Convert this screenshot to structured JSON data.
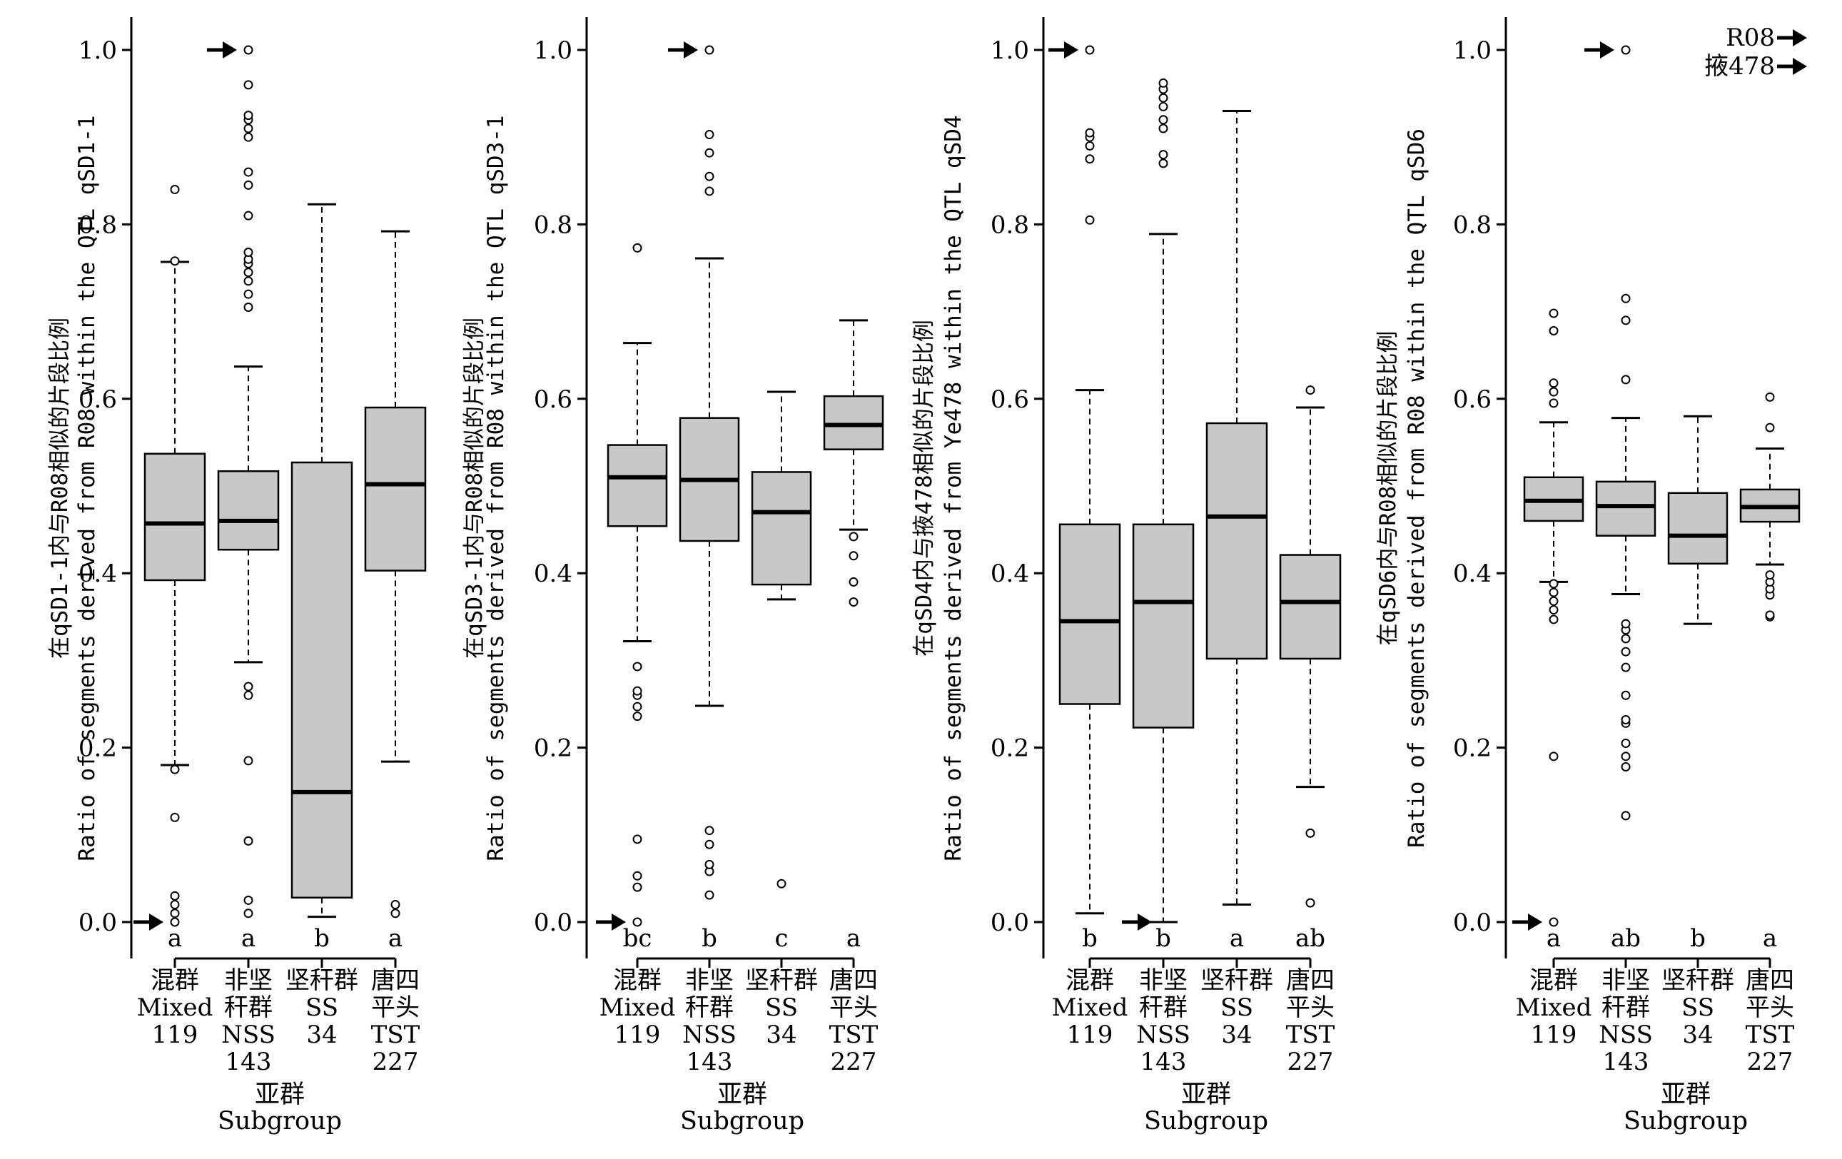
{
  "chart_data": [
    {
      "type": "box",
      "ylabel_cn": "在qSD1-1内与R08相似的片段比例",
      "ylabel_en": "Ratio of segments derived from R08 within the QTL qSD1-1",
      "xlabel_cn": "亚群",
      "xlabel_en": "Subgroup",
      "ylim": [
        0,
        1
      ],
      "yticks": [
        "0.0",
        "0.2",
        "0.4",
        "0.6",
        "0.8",
        "1.0"
      ],
      "groups": [
        {
          "cn": [
            "混群"
          ],
          "en": "Mixed",
          "n": "119",
          "q1": 0.392,
          "median": 0.457,
          "q3": 0.537,
          "whisker_low": 0.18,
          "whisker_high": 0.757,
          "letter": "a",
          "outliers": [
            0.0,
            0.01,
            0.02,
            0.03,
            0.12,
            0.175,
            0.758,
            0.84
          ],
          "arrow_at": 0.0
        },
        {
          "cn": [
            "非坚",
            "秆群"
          ],
          "en": "NSS",
          "n": "143",
          "q1": 0.427,
          "median": 0.46,
          "q3": 0.517,
          "whisker_low": 0.298,
          "whisker_high": 0.637,
          "letter": "a",
          "outliers": [
            0.01,
            0.025,
            0.093,
            0.185,
            0.26,
            0.27,
            0.705,
            0.72,
            0.735,
            0.745,
            0.755,
            0.76,
            0.768,
            0.81,
            0.845,
            0.86,
            0.9,
            0.91,
            0.92,
            0.925,
            0.96,
            1.0
          ],
          "arrow_at": 1.0
        },
        {
          "cn": [
            "坚秆群"
          ],
          "en": "SS",
          "n": "34",
          "q1": 0.028,
          "median": 0.149,
          "q3": 0.527,
          "whisker_low": 0.006,
          "whisker_high": 0.823,
          "letter": "b",
          "outliers": []
        },
        {
          "cn": [
            "唐四",
            "平头"
          ],
          "en": "TST",
          "n": "227",
          "q1": 0.403,
          "median": 0.502,
          "q3": 0.59,
          "whisker_low": 0.184,
          "whisker_high": 0.792,
          "letter": "a",
          "outliers": [
            0.01,
            0.02
          ]
        }
      ]
    },
    {
      "type": "box",
      "ylabel_cn": "在qSD3-1内与R08相似的片段比例",
      "ylabel_en": "Ratio of segments derived from R08 within the QTL qSD3-1",
      "xlabel_cn": "亚群",
      "xlabel_en": "Subgroup",
      "ylim": [
        0,
        1
      ],
      "yticks": [
        "0.0",
        "0.2",
        "0.4",
        "0.6",
        "0.8",
        "1.0"
      ],
      "groups": [
        {
          "cn": [
            "混群"
          ],
          "en": "Mixed",
          "n": "119",
          "q1": 0.454,
          "median": 0.51,
          "q3": 0.547,
          "whisker_low": 0.322,
          "whisker_high": 0.664,
          "letter": "bc",
          "outliers": [
            0.0,
            0.04,
            0.053,
            0.095,
            0.236,
            0.247,
            0.26,
            0.265,
            0.293,
            0.773
          ],
          "arrow_at": 0.0
        },
        {
          "cn": [
            "非坚",
            "秆群"
          ],
          "en": "NSS",
          "n": "143",
          "q1": 0.437,
          "median": 0.507,
          "q3": 0.578,
          "whisker_low": 0.248,
          "whisker_high": 0.761,
          "letter": "b",
          "outliers": [
            0.031,
            0.058,
            0.066,
            0.089,
            0.105,
            0.838,
            0.855,
            0.882,
            0.903,
            1.0
          ],
          "arrow_at": 1.0
        },
        {
          "cn": [
            "坚秆群"
          ],
          "en": "SS",
          "n": "34",
          "q1": 0.387,
          "median": 0.47,
          "q3": 0.516,
          "whisker_low": 0.37,
          "whisker_high": 0.608,
          "letter": "c",
          "outliers": [
            0.044
          ]
        },
        {
          "cn": [
            "唐四",
            "平头"
          ],
          "en": "TST",
          "n": "227",
          "q1": 0.542,
          "median": 0.57,
          "q3": 0.603,
          "whisker_low": 0.45,
          "whisker_high": 0.69,
          "letter": "a",
          "outliers": [
            0.367,
            0.39,
            0.42,
            0.442
          ]
        }
      ]
    },
    {
      "type": "box",
      "ylabel_cn": "在qSD4内与掖478相似的片段比例",
      "ylabel_en": "Ratio of segments derived from Ye478 within the QTL qSD4",
      "xlabel_cn": "亚群",
      "xlabel_en": "Subgroup",
      "ylim": [
        0,
        1
      ],
      "yticks": [
        "0.0",
        "0.2",
        "0.4",
        "0.6",
        "0.8",
        "1.0"
      ],
      "groups": [
        {
          "cn": [
            "混群"
          ],
          "en": "Mixed",
          "n": "119",
          "q1": 0.25,
          "median": 0.345,
          "q3": 0.456,
          "whisker_low": 0.01,
          "whisker_high": 0.61,
          "letter": "b",
          "outliers": [
            0.805,
            0.875,
            0.89,
            0.9,
            0.905,
            1.0
          ],
          "arrow_at": 1.0
        },
        {
          "cn": [
            "非坚",
            "秆群"
          ],
          "en": "NSS",
          "n": "143",
          "q1": 0.223,
          "median": 0.367,
          "q3": 0.456,
          "whisker_low": 0.0,
          "whisker_high": 0.789,
          "letter": "b",
          "outliers": [
            0.87,
            0.88,
            0.91,
            0.92,
            0.935,
            0.945,
            0.955,
            0.962
          ],
          "arrow_at": 0.0
        },
        {
          "cn": [
            "坚秆群"
          ],
          "en": "SS",
          "n": "34",
          "q1": 0.302,
          "median": 0.465,
          "q3": 0.572,
          "whisker_low": 0.02,
          "whisker_high": 0.93,
          "letter": "a",
          "outliers": []
        },
        {
          "cn": [
            "唐四",
            "平头"
          ],
          "en": "TST",
          "n": "227",
          "q1": 0.302,
          "median": 0.367,
          "q3": 0.421,
          "whisker_low": 0.155,
          "whisker_high": 0.59,
          "letter": "ab",
          "outliers": [
            0.022,
            0.102,
            0.61
          ]
        }
      ]
    },
    {
      "type": "box",
      "ylabel_cn": "在qSD6内与R08相似的片段比例",
      "ylabel_en": "Ratio of segments derived from R08 within the QTL qSD6",
      "xlabel_cn": "亚群",
      "xlabel_en": "Subgroup",
      "ylim": [
        0,
        1
      ],
      "yticks": [
        "0.0",
        "0.2",
        "0.4",
        "0.6",
        "0.8",
        "1.0"
      ],
      "legend": [
        {
          "label": "R08"
        },
        {
          "label": "掖478"
        }
      ],
      "groups": [
        {
          "cn": [
            "混群"
          ],
          "en": "Mixed",
          "n": "119",
          "q1": 0.46,
          "median": 0.483,
          "q3": 0.51,
          "whisker_low": 0.39,
          "whisker_high": 0.573,
          "letter": "a",
          "outliers": [
            0.0,
            0.19,
            0.347,
            0.358,
            0.368,
            0.378,
            0.388,
            0.595,
            0.608,
            0.618,
            0.678,
            0.698
          ],
          "arrow_at": 0.0
        },
        {
          "cn": [
            "非坚",
            "秆群"
          ],
          "en": "NSS",
          "n": "143",
          "q1": 0.443,
          "median": 0.477,
          "q3": 0.505,
          "whisker_low": 0.376,
          "whisker_high": 0.578,
          "letter": "ab",
          "outliers": [
            0.122,
            0.178,
            0.19,
            0.205,
            0.228,
            0.232,
            0.26,
            0.292,
            0.31,
            0.325,
            0.335,
            0.342,
            0.622,
            0.69,
            0.715,
            1.0
          ],
          "arrow_at": 1.0
        },
        {
          "cn": [
            "坚秆群"
          ],
          "en": "SS",
          "n": "34",
          "q1": 0.411,
          "median": 0.443,
          "q3": 0.492,
          "whisker_low": 0.342,
          "whisker_high": 0.58,
          "letter": "b",
          "outliers": []
        },
        {
          "cn": [
            "唐四",
            "平头"
          ],
          "en": "TST",
          "n": "227",
          "q1": 0.459,
          "median": 0.476,
          "q3": 0.496,
          "whisker_low": 0.41,
          "whisker_high": 0.543,
          "letter": "a",
          "outliers": [
            0.35,
            0.352,
            0.375,
            0.382,
            0.39,
            0.398,
            0.567,
            0.602
          ]
        }
      ]
    }
  ]
}
